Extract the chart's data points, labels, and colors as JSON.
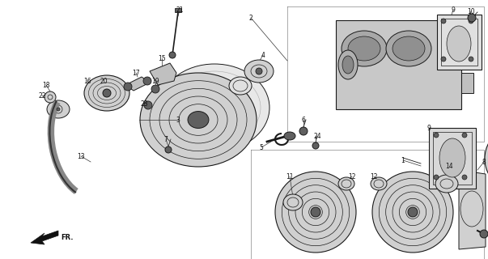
{
  "bg_color": "#ffffff",
  "fig_width": 6.03,
  "fig_height": 3.2,
  "dpi": 100,
  "lc": "#1a1a1a",
  "gray_light": "#d0d0d0",
  "gray_mid": "#a0a0a0",
  "gray_dark": "#606060"
}
